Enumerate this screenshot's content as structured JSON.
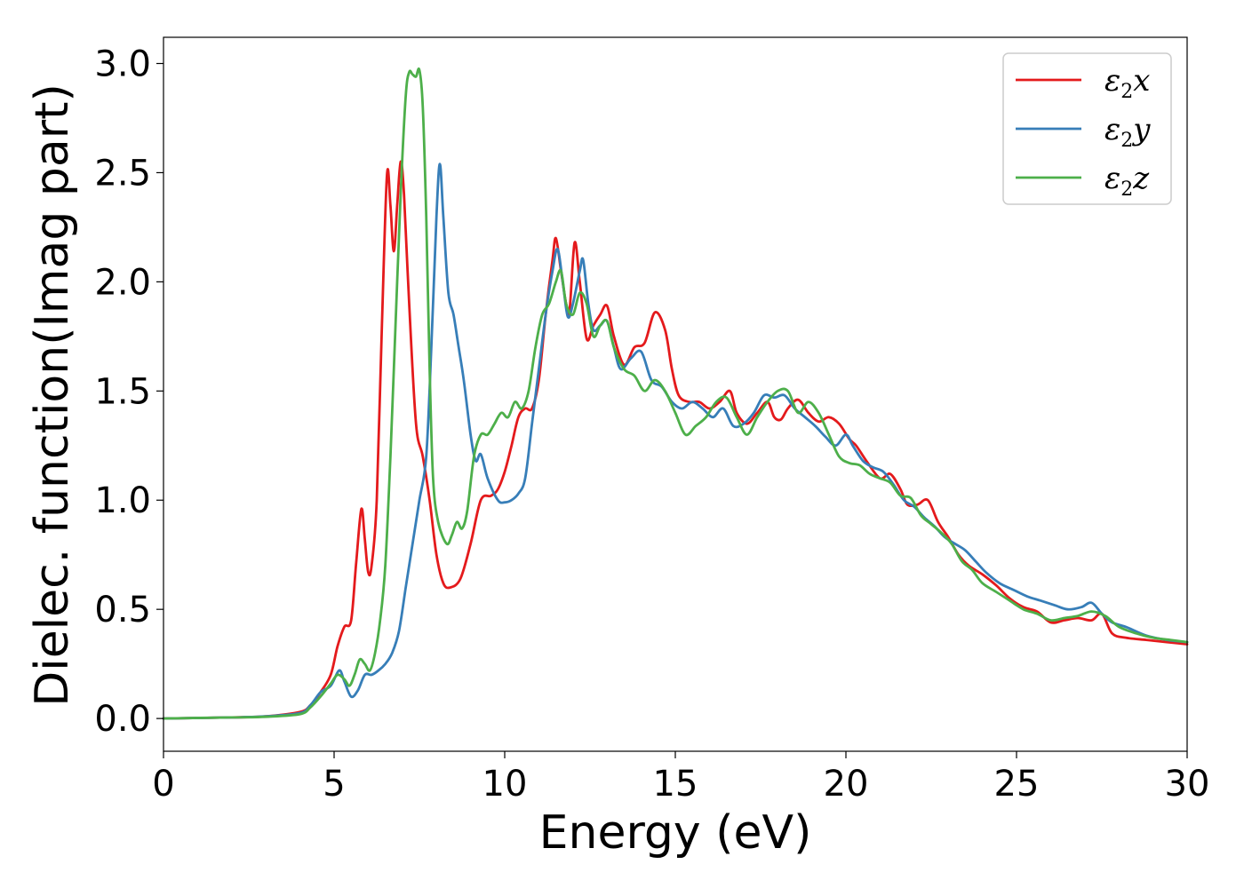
{
  "chart_data": {
    "type": "line",
    "title": "",
    "xlabel": "Energy (eV)",
    "ylabel": "Dielec. function(Imag part)",
    "xlim": [
      0,
      30
    ],
    "ylim": [
      -0.15,
      3.12
    ],
    "xticks": [
      "0",
      "5",
      "10",
      "15",
      "20",
      "25",
      "30"
    ],
    "yticks": [
      "0.0",
      "0.5",
      "1.0",
      "1.5",
      "2.0",
      "2.5",
      "3.0"
    ],
    "grid": false,
    "legend_position": "top-right",
    "series": [
      {
        "name": "ε2x",
        "legend": {
          "base": "ε",
          "sub": "2",
          "var": "x"
        },
        "color": "#e41a1c",
        "points": [
          [
            0,
            0
          ],
          [
            2,
            0.005
          ],
          [
            3,
            0.01
          ],
          [
            4,
            0.03
          ],
          [
            4.3,
            0.06
          ],
          [
            4.6,
            0.12
          ],
          [
            4.9,
            0.2
          ],
          [
            5.1,
            0.33
          ],
          [
            5.3,
            0.42
          ],
          [
            5.5,
            0.45
          ],
          [
            5.65,
            0.72
          ],
          [
            5.8,
            0.96
          ],
          [
            5.9,
            0.82
          ],
          [
            6.0,
            0.67
          ],
          [
            6.1,
            0.7
          ],
          [
            6.25,
            1.0
          ],
          [
            6.4,
            1.8
          ],
          [
            6.55,
            2.49
          ],
          [
            6.65,
            2.35
          ],
          [
            6.75,
            2.14
          ],
          [
            6.85,
            2.35
          ],
          [
            6.95,
            2.55
          ],
          [
            7.05,
            2.4
          ],
          [
            7.2,
            1.9
          ],
          [
            7.4,
            1.35
          ],
          [
            7.6,
            1.2
          ],
          [
            7.8,
            1.0
          ],
          [
            8.0,
            0.75
          ],
          [
            8.2,
            0.62
          ],
          [
            8.4,
            0.6
          ],
          [
            8.7,
            0.64
          ],
          [
            9.0,
            0.8
          ],
          [
            9.3,
            1.0
          ],
          [
            9.6,
            1.02
          ],
          [
            9.8,
            1.05
          ],
          [
            10.0,
            1.13
          ],
          [
            10.2,
            1.25
          ],
          [
            10.4,
            1.38
          ],
          [
            10.6,
            1.42
          ],
          [
            10.8,
            1.42
          ],
          [
            11.0,
            1.55
          ],
          [
            11.2,
            1.85
          ],
          [
            11.4,
            2.1
          ],
          [
            11.5,
            2.2
          ],
          [
            11.65,
            2.05
          ],
          [
            11.8,
            1.9
          ],
          [
            11.9,
            1.87
          ],
          [
            12.05,
            2.18
          ],
          [
            12.2,
            2.0
          ],
          [
            12.4,
            1.74
          ],
          [
            12.6,
            1.8
          ],
          [
            12.8,
            1.85
          ],
          [
            13.0,
            1.89
          ],
          [
            13.2,
            1.75
          ],
          [
            13.5,
            1.62
          ],
          [
            13.8,
            1.7
          ],
          [
            14.1,
            1.72
          ],
          [
            14.4,
            1.86
          ],
          [
            14.7,
            1.78
          ],
          [
            14.9,
            1.6
          ],
          [
            15.1,
            1.48
          ],
          [
            15.4,
            1.45
          ],
          [
            15.7,
            1.45
          ],
          [
            16.0,
            1.42
          ],
          [
            16.3,
            1.45
          ],
          [
            16.6,
            1.5
          ],
          [
            16.8,
            1.4
          ],
          [
            17.1,
            1.35
          ],
          [
            17.4,
            1.4
          ],
          [
            17.7,
            1.45
          ],
          [
            17.9,
            1.38
          ],
          [
            18.1,
            1.37
          ],
          [
            18.3,
            1.42
          ],
          [
            18.6,
            1.46
          ],
          [
            18.9,
            1.4
          ],
          [
            19.2,
            1.36
          ],
          [
            19.5,
            1.38
          ],
          [
            19.8,
            1.35
          ],
          [
            20.1,
            1.28
          ],
          [
            20.3,
            1.25
          ],
          [
            20.6,
            1.18
          ],
          [
            21.0,
            1.1
          ],
          [
            21.3,
            1.12
          ],
          [
            21.6,
            1.05
          ],
          [
            21.8,
            0.98
          ],
          [
            22.1,
            0.98
          ],
          [
            22.4,
            1.0
          ],
          [
            22.7,
            0.9
          ],
          [
            23.0,
            0.83
          ],
          [
            23.3,
            0.75
          ],
          [
            23.6,
            0.7
          ],
          [
            24.0,
            0.66
          ],
          [
            24.4,
            0.61
          ],
          [
            24.8,
            0.55
          ],
          [
            25.2,
            0.51
          ],
          [
            25.6,
            0.49
          ],
          [
            26.0,
            0.44
          ],
          [
            26.4,
            0.45
          ],
          [
            26.8,
            0.46
          ],
          [
            27.2,
            0.45
          ],
          [
            27.5,
            0.48
          ],
          [
            27.8,
            0.39
          ],
          [
            28.2,
            0.37
          ],
          [
            28.8,
            0.36
          ],
          [
            29.4,
            0.35
          ],
          [
            30,
            0.34
          ]
        ]
      },
      {
        "name": "ε2y",
        "legend": {
          "base": "ε",
          "sub": "2",
          "var": "y"
        },
        "color": "#377eb8",
        "points": [
          [
            0,
            0
          ],
          [
            2,
            0.005
          ],
          [
            3,
            0.01
          ],
          [
            4,
            0.025
          ],
          [
            4.3,
            0.06
          ],
          [
            4.6,
            0.12
          ],
          [
            4.9,
            0.15
          ],
          [
            5.15,
            0.22
          ],
          [
            5.3,
            0.17
          ],
          [
            5.5,
            0.1
          ],
          [
            5.7,
            0.13
          ],
          [
            5.9,
            0.2
          ],
          [
            6.1,
            0.2
          ],
          [
            6.3,
            0.22
          ],
          [
            6.5,
            0.25
          ],
          [
            6.7,
            0.3
          ],
          [
            6.9,
            0.4
          ],
          [
            7.1,
            0.6
          ],
          [
            7.3,
            0.8
          ],
          [
            7.5,
            1.0
          ],
          [
            7.7,
            1.2
          ],
          [
            7.85,
            1.7
          ],
          [
            8.0,
            2.3
          ],
          [
            8.1,
            2.54
          ],
          [
            8.2,
            2.3
          ],
          [
            8.35,
            1.95
          ],
          [
            8.5,
            1.85
          ],
          [
            8.65,
            1.7
          ],
          [
            8.8,
            1.55
          ],
          [
            9.0,
            1.3
          ],
          [
            9.15,
            1.18
          ],
          [
            9.3,
            1.21
          ],
          [
            9.5,
            1.1
          ],
          [
            9.8,
            1.0
          ],
          [
            10.0,
            0.99
          ],
          [
            10.2,
            1.0
          ],
          [
            10.4,
            1.03
          ],
          [
            10.6,
            1.1
          ],
          [
            10.8,
            1.35
          ],
          [
            11.0,
            1.6
          ],
          [
            11.2,
            1.85
          ],
          [
            11.4,
            2.05
          ],
          [
            11.55,
            2.15
          ],
          [
            11.7,
            2.0
          ],
          [
            11.85,
            1.84
          ],
          [
            12.0,
            1.9
          ],
          [
            12.2,
            2.05
          ],
          [
            12.3,
            2.1
          ],
          [
            12.45,
            1.9
          ],
          [
            12.6,
            1.78
          ],
          [
            12.8,
            1.8
          ],
          [
            13.0,
            1.82
          ],
          [
            13.2,
            1.7
          ],
          [
            13.4,
            1.6
          ],
          [
            13.7,
            1.65
          ],
          [
            14.0,
            1.68
          ],
          [
            14.3,
            1.55
          ],
          [
            14.6,
            1.52
          ],
          [
            14.9,
            1.45
          ],
          [
            15.2,
            1.42
          ],
          [
            15.5,
            1.45
          ],
          [
            15.8,
            1.42
          ],
          [
            16.1,
            1.38
          ],
          [
            16.4,
            1.42
          ],
          [
            16.7,
            1.34
          ],
          [
            17.0,
            1.35
          ],
          [
            17.3,
            1.4
          ],
          [
            17.6,
            1.48
          ],
          [
            17.9,
            1.47
          ],
          [
            18.2,
            1.48
          ],
          [
            18.5,
            1.42
          ],
          [
            18.8,
            1.38
          ],
          [
            19.1,
            1.34
          ],
          [
            19.4,
            1.29
          ],
          [
            19.7,
            1.25
          ],
          [
            20.0,
            1.3
          ],
          [
            20.2,
            1.25
          ],
          [
            20.5,
            1.18
          ],
          [
            20.8,
            1.15
          ],
          [
            21.1,
            1.13
          ],
          [
            21.4,
            1.07
          ],
          [
            21.7,
            1.0
          ],
          [
            22.0,
            0.97
          ],
          [
            22.3,
            0.92
          ],
          [
            22.6,
            0.88
          ],
          [
            22.9,
            0.83
          ],
          [
            23.2,
            0.8
          ],
          [
            23.5,
            0.77
          ],
          [
            23.8,
            0.72
          ],
          [
            24.1,
            0.67
          ],
          [
            24.5,
            0.62
          ],
          [
            24.9,
            0.59
          ],
          [
            25.3,
            0.56
          ],
          [
            25.7,
            0.54
          ],
          [
            26.1,
            0.52
          ],
          [
            26.5,
            0.5
          ],
          [
            26.9,
            0.51
          ],
          [
            27.2,
            0.53
          ],
          [
            27.5,
            0.48
          ],
          [
            27.8,
            0.44
          ],
          [
            28.2,
            0.42
          ],
          [
            28.8,
            0.38
          ],
          [
            29.4,
            0.36
          ],
          [
            30,
            0.35
          ]
        ]
      },
      {
        "name": "ε2z",
        "legend": {
          "base": "ε",
          "sub": "2",
          "var": "z"
        },
        "color": "#4daf4a",
        "points": [
          [
            0,
            0
          ],
          [
            2,
            0.005
          ],
          [
            3,
            0.008
          ],
          [
            4,
            0.02
          ],
          [
            4.3,
            0.05
          ],
          [
            4.6,
            0.1
          ],
          [
            4.9,
            0.16
          ],
          [
            5.1,
            0.2
          ],
          [
            5.3,
            0.18
          ],
          [
            5.45,
            0.15
          ],
          [
            5.6,
            0.2
          ],
          [
            5.75,
            0.27
          ],
          [
            5.9,
            0.25
          ],
          [
            6.05,
            0.22
          ],
          [
            6.2,
            0.3
          ],
          [
            6.35,
            0.45
          ],
          [
            6.5,
            0.7
          ],
          [
            6.65,
            1.2
          ],
          [
            6.8,
            1.8
          ],
          [
            6.95,
            2.4
          ],
          [
            7.1,
            2.85
          ],
          [
            7.2,
            2.96
          ],
          [
            7.3,
            2.95
          ],
          [
            7.4,
            2.94
          ],
          [
            7.5,
            2.97
          ],
          [
            7.6,
            2.8
          ],
          [
            7.7,
            2.3
          ],
          [
            7.8,
            1.6
          ],
          [
            7.9,
            1.1
          ],
          [
            8.05,
            0.9
          ],
          [
            8.3,
            0.8
          ],
          [
            8.45,
            0.84
          ],
          [
            8.6,
            0.9
          ],
          [
            8.75,
            0.87
          ],
          [
            8.9,
            0.95
          ],
          [
            9.1,
            1.2
          ],
          [
            9.3,
            1.3
          ],
          [
            9.5,
            1.3
          ],
          [
            9.7,
            1.35
          ],
          [
            9.9,
            1.4
          ],
          [
            10.1,
            1.38
          ],
          [
            10.3,
            1.45
          ],
          [
            10.5,
            1.42
          ],
          [
            10.7,
            1.5
          ],
          [
            10.9,
            1.7
          ],
          [
            11.1,
            1.85
          ],
          [
            11.3,
            1.9
          ],
          [
            11.5,
            2.0
          ],
          [
            11.65,
            2.05
          ],
          [
            11.8,
            1.9
          ],
          [
            12.0,
            1.85
          ],
          [
            12.2,
            1.95
          ],
          [
            12.4,
            1.9
          ],
          [
            12.6,
            1.75
          ],
          [
            12.8,
            1.8
          ],
          [
            13.0,
            1.82
          ],
          [
            13.2,
            1.7
          ],
          [
            13.5,
            1.6
          ],
          [
            13.8,
            1.57
          ],
          [
            14.1,
            1.5
          ],
          [
            14.4,
            1.55
          ],
          [
            14.7,
            1.5
          ],
          [
            15.0,
            1.4
          ],
          [
            15.3,
            1.3
          ],
          [
            15.6,
            1.34
          ],
          [
            15.9,
            1.38
          ],
          [
            16.2,
            1.45
          ],
          [
            16.5,
            1.47
          ],
          [
            16.8,
            1.38
          ],
          [
            17.1,
            1.3
          ],
          [
            17.4,
            1.38
          ],
          [
            17.7,
            1.45
          ],
          [
            18.0,
            1.5
          ],
          [
            18.3,
            1.5
          ],
          [
            18.6,
            1.4
          ],
          [
            18.9,
            1.45
          ],
          [
            19.2,
            1.4
          ],
          [
            19.5,
            1.3
          ],
          [
            19.8,
            1.2
          ],
          [
            20.1,
            1.17
          ],
          [
            20.4,
            1.16
          ],
          [
            20.7,
            1.12
          ],
          [
            21.0,
            1.1
          ],
          [
            21.3,
            1.08
          ],
          [
            21.6,
            1.02
          ],
          [
            21.9,
            1.01
          ],
          [
            22.2,
            0.93
          ],
          [
            22.5,
            0.89
          ],
          [
            22.8,
            0.85
          ],
          [
            23.1,
            0.8
          ],
          [
            23.4,
            0.72
          ],
          [
            23.7,
            0.68
          ],
          [
            24.0,
            0.62
          ],
          [
            24.4,
            0.58
          ],
          [
            24.8,
            0.54
          ],
          [
            25.2,
            0.5
          ],
          [
            25.6,
            0.48
          ],
          [
            26.0,
            0.45
          ],
          [
            26.4,
            0.46
          ],
          [
            26.8,
            0.47
          ],
          [
            27.2,
            0.49
          ],
          [
            27.6,
            0.47
          ],
          [
            28.0,
            0.42
          ],
          [
            28.5,
            0.39
          ],
          [
            29.0,
            0.37
          ],
          [
            29.5,
            0.36
          ],
          [
            30,
            0.35
          ]
        ]
      }
    ]
  }
}
